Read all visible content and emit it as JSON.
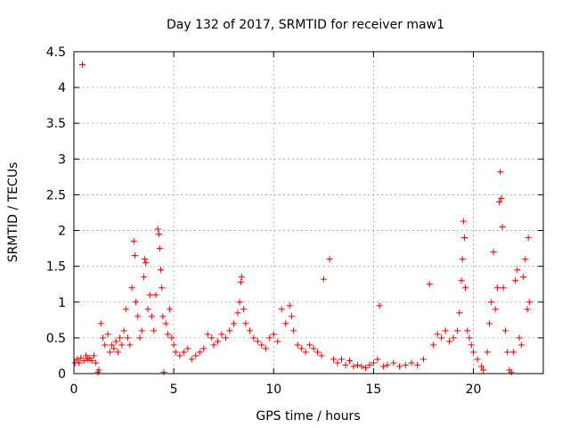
{
  "chart_data": {
    "type": "scatter",
    "title": "Day 132 of 2017, SRMTID for receiver maw1",
    "xlabel": "GPS time / hours",
    "ylabel": "SRMTID / TECUs",
    "xlim": [
      0,
      23.5
    ],
    "ylim": [
      0,
      4.5
    ],
    "x_ticks": [
      0,
      5,
      10,
      15,
      20
    ],
    "y_ticks": [
      0,
      0.5,
      1,
      1.5,
      2,
      2.5,
      3,
      3.5,
      4,
      4.5
    ],
    "x_tick_labels": [
      "0",
      "5",
      "10",
      "15",
      "20"
    ],
    "y_tick_labels": [
      "0",
      "0.5",
      "1",
      "1.5",
      "2",
      "2.5",
      "3",
      "3.5",
      "4",
      "4.5"
    ],
    "grid": true,
    "marker": "+",
    "color": "#e60000",
    "series": [
      {
        "name": "SRMTID",
        "points": [
          [
            0.05,
            0.15
          ],
          [
            0.15,
            0.2
          ],
          [
            0.25,
            0.15
          ],
          [
            0.35,
            0.22
          ],
          [
            0.42,
            4.32
          ],
          [
            0.5,
            0.18
          ],
          [
            0.6,
            0.25
          ],
          [
            0.7,
            0.2
          ],
          [
            0.8,
            0.22
          ],
          [
            0.9,
            0.18
          ],
          [
            1.0,
            0.25
          ],
          [
            1.1,
            0.15
          ],
          [
            1.2,
            0.02
          ],
          [
            1.25,
            0.05
          ],
          [
            1.35,
            0.7
          ],
          [
            1.45,
            0.5
          ],
          [
            1.55,
            0.4
          ],
          [
            1.7,
            0.55
          ],
          [
            1.8,
            0.3
          ],
          [
            1.9,
            0.4
          ],
          [
            2.0,
            0.35
          ],
          [
            2.1,
            0.45
          ],
          [
            2.2,
            0.3
          ],
          [
            2.3,
            0.5
          ],
          [
            2.4,
            0.4
          ],
          [
            2.5,
            0.6
          ],
          [
            2.6,
            0.9
          ],
          [
            2.7,
            0.5
          ],
          [
            2.8,
            0.4
          ],
          [
            2.9,
            1.2
          ],
          [
            3.0,
            1.85
          ],
          [
            3.05,
            1.65
          ],
          [
            3.1,
            1.0
          ],
          [
            3.2,
            0.8
          ],
          [
            3.3,
            0.5
          ],
          [
            3.4,
            0.6
          ],
          [
            3.5,
            1.35
          ],
          [
            3.55,
            1.6
          ],
          [
            3.6,
            1.55
          ],
          [
            3.7,
            0.9
          ],
          [
            3.8,
            1.1
          ],
          [
            3.9,
            0.8
          ],
          [
            4.0,
            0.6
          ],
          [
            4.1,
            1.1
          ],
          [
            4.2,
            2.02
          ],
          [
            4.25,
            1.95
          ],
          [
            4.3,
            1.75
          ],
          [
            4.35,
            1.45
          ],
          [
            4.4,
            1.2
          ],
          [
            4.45,
            0.8
          ],
          [
            4.5,
            0.02
          ],
          [
            4.6,
            0.7
          ],
          [
            4.7,
            0.55
          ],
          [
            4.8,
            0.9
          ],
          [
            4.9,
            0.5
          ],
          [
            5.0,
            0.4
          ],
          [
            5.1,
            0.3
          ],
          [
            5.3,
            0.25
          ],
          [
            5.5,
            0.3
          ],
          [
            5.7,
            0.35
          ],
          [
            5.9,
            0.2
          ],
          [
            6.1,
            0.25
          ],
          [
            6.3,
            0.3
          ],
          [
            6.5,
            0.35
          ],
          [
            6.7,
            0.55
          ],
          [
            6.9,
            0.5
          ],
          [
            7.0,
            0.4
          ],
          [
            7.2,
            0.45
          ],
          [
            7.4,
            0.55
          ],
          [
            7.6,
            0.5
          ],
          [
            7.8,
            0.6
          ],
          [
            8.0,
            0.7
          ],
          [
            8.2,
            0.85
          ],
          [
            8.3,
            1.0
          ],
          [
            8.35,
            1.28
          ],
          [
            8.4,
            1.35
          ],
          [
            8.5,
            0.9
          ],
          [
            8.6,
            0.7
          ],
          [
            8.8,
            0.6
          ],
          [
            9.0,
            0.5
          ],
          [
            9.2,
            0.45
          ],
          [
            9.4,
            0.4
          ],
          [
            9.6,
            0.35
          ],
          [
            9.8,
            0.5
          ],
          [
            10.0,
            0.55
          ],
          [
            10.2,
            0.45
          ],
          [
            10.4,
            0.9
          ],
          [
            10.6,
            0.7
          ],
          [
            10.8,
            0.95
          ],
          [
            10.9,
            0.8
          ],
          [
            11.0,
            0.6
          ],
          [
            11.2,
            0.4
          ],
          [
            11.4,
            0.35
          ],
          [
            11.6,
            0.3
          ],
          [
            11.8,
            0.4
          ],
          [
            12.0,
            0.35
          ],
          [
            12.2,
            0.3
          ],
          [
            12.4,
            0.25
          ],
          [
            12.5,
            1.32
          ],
          [
            12.8,
            1.6
          ],
          [
            13.0,
            0.2
          ],
          [
            13.2,
            0.15
          ],
          [
            13.4,
            0.2
          ],
          [
            13.6,
            0.12
          ],
          [
            13.8,
            0.18
          ],
          [
            14.0,
            0.1
          ],
          [
            14.2,
            0.12
          ],
          [
            14.4,
            0.1
          ],
          [
            14.6,
            0.08
          ],
          [
            14.8,
            0.12
          ],
          [
            15.0,
            0.15
          ],
          [
            15.2,
            0.2
          ],
          [
            15.3,
            0.95
          ],
          [
            15.5,
            0.1
          ],
          [
            15.7,
            0.12
          ],
          [
            16.0,
            0.15
          ],
          [
            16.3,
            0.1
          ],
          [
            16.6,
            0.12
          ],
          [
            16.9,
            0.15
          ],
          [
            17.2,
            0.12
          ],
          [
            17.5,
            0.2
          ],
          [
            17.8,
            1.25
          ],
          [
            18.0,
            0.4
          ],
          [
            18.2,
            0.55
          ],
          [
            18.4,
            0.5
          ],
          [
            18.6,
            0.6
          ],
          [
            18.8,
            0.45
          ],
          [
            19.0,
            0.5
          ],
          [
            19.2,
            0.6
          ],
          [
            19.3,
            0.85
          ],
          [
            19.4,
            1.3
          ],
          [
            19.45,
            1.6
          ],
          [
            19.5,
            2.13
          ],
          [
            19.55,
            1.9
          ],
          [
            19.6,
            1.2
          ],
          [
            19.7,
            0.6
          ],
          [
            19.8,
            0.5
          ],
          [
            19.9,
            0.4
          ],
          [
            20.0,
            0.3
          ],
          [
            20.2,
            0.2
          ],
          [
            20.4,
            0.1
          ],
          [
            20.5,
            0.05
          ],
          [
            20.7,
            0.3
          ],
          [
            20.8,
            0.7
          ],
          [
            20.9,
            1.0
          ],
          [
            21.0,
            1.7
          ],
          [
            21.1,
            0.9
          ],
          [
            21.2,
            1.2
          ],
          [
            21.3,
            2.4
          ],
          [
            21.35,
            2.82
          ],
          [
            21.4,
            2.45
          ],
          [
            21.45,
            2.05
          ],
          [
            21.5,
            1.2
          ],
          [
            21.6,
            0.6
          ],
          [
            21.7,
            0.3
          ],
          [
            21.8,
            0.05
          ],
          [
            21.9,
            0.02
          ],
          [
            22.0,
            0.3
          ],
          [
            22.1,
            1.3
          ],
          [
            22.2,
            1.45
          ],
          [
            22.3,
            0.5
          ],
          [
            22.4,
            0.4
          ],
          [
            22.5,
            1.35
          ],
          [
            22.6,
            1.6
          ],
          [
            22.7,
            0.9
          ],
          [
            22.75,
            1.9
          ],
          [
            22.8,
            1.0
          ]
        ]
      }
    ]
  }
}
